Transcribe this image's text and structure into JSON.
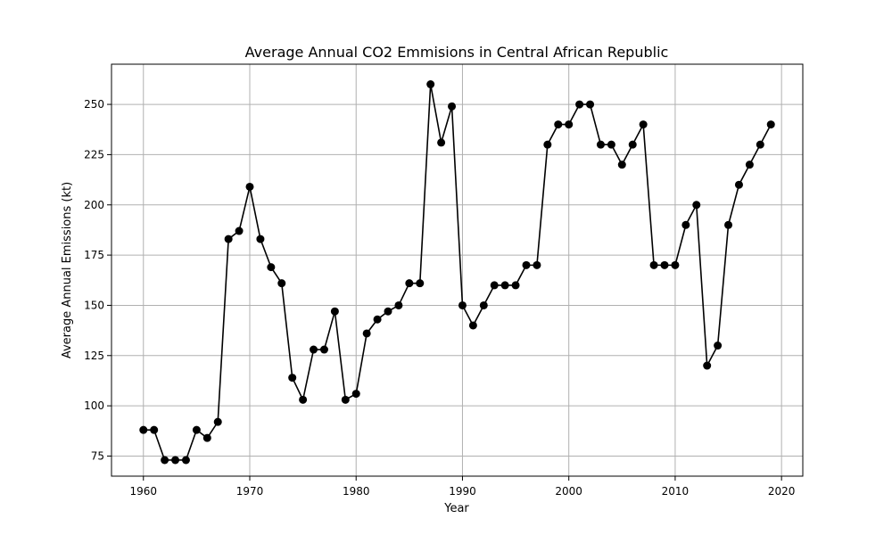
{
  "chart_data": {
    "type": "line",
    "title": "Average Annual CO2 Emmisions in Central African Republic",
    "xlabel": "Year",
    "ylabel": "Average Annual Emissions (kt)",
    "xlim": [
      1957,
      2022
    ],
    "ylim": [
      65,
      270
    ],
    "xticks": [
      1960,
      1970,
      1980,
      1990,
      2000,
      2010,
      2020
    ],
    "yticks": [
      75,
      100,
      125,
      150,
      175,
      200,
      225,
      250
    ],
    "grid": true,
    "line_color": "#000000",
    "marker": "circle",
    "x": [
      1960,
      1961,
      1962,
      1963,
      1964,
      1965,
      1966,
      1967,
      1968,
      1969,
      1970,
      1971,
      1972,
      1973,
      1974,
      1975,
      1976,
      1977,
      1978,
      1979,
      1980,
      1981,
      1982,
      1983,
      1984,
      1985,
      1986,
      1987,
      1988,
      1989,
      1990,
      1991,
      1992,
      1993,
      1994,
      1995,
      1996,
      1997,
      1998,
      1999,
      2000,
      2001,
      2002,
      2003,
      2004,
      2005,
      2006,
      2007,
      2008,
      2009,
      2010,
      2011,
      2012,
      2013,
      2014,
      2015,
      2016,
      2017,
      2018,
      2019
    ],
    "values": [
      88,
      88,
      73,
      73,
      73,
      88,
      84,
      92,
      183,
      187,
      209,
      183,
      169,
      161,
      114,
      103,
      128,
      128,
      147,
      103,
      106,
      136,
      143,
      147,
      150,
      161,
      161,
      260,
      231,
      249,
      150,
      140,
      150,
      160,
      160,
      160,
      170,
      170,
      230,
      240,
      240,
      250,
      250,
      230,
      230,
      220,
      230,
      240,
      170,
      170,
      170,
      190,
      200,
      120,
      130,
      190,
      210,
      220,
      230,
      240
    ]
  }
}
